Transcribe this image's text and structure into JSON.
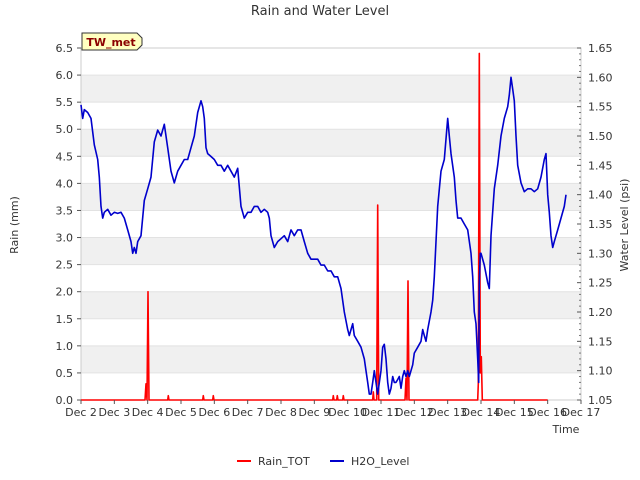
{
  "chart_data": {
    "type": "line",
    "title": "Rain and Water Level",
    "station_label": "TW_met",
    "xlabel": "Time",
    "ylabel_left": "Rain (mm)",
    "ylabel_right": "Water Level (psi)",
    "x_ticks": [
      "Dec 2",
      "Dec 3",
      "Dec 4",
      "Dec 5",
      "Dec 6",
      "Dec 7",
      "Dec 8",
      "Dec 9",
      "Dec 10",
      "Dec 11",
      "Dec 12",
      "Dec 13",
      "Dec 14",
      "Dec 15",
      "Dec 16",
      "Dec 17"
    ],
    "x_range_days": [
      0,
      15
    ],
    "y_left_ticks": [
      "0.0",
      "0.5",
      "1.0",
      "1.5",
      "2.0",
      "2.5",
      "3.0",
      "3.5",
      "4.0",
      "4.5",
      "5.0",
      "5.5",
      "6.0",
      "6.5"
    ],
    "y_left_range": [
      0,
      6.5
    ],
    "y_right_ticks": [
      "1.05",
      "1.10",
      "1.15",
      "1.20",
      "1.25",
      "1.30",
      "1.35",
      "1.40",
      "1.45",
      "1.50",
      "1.55",
      "1.60",
      "1.65"
    ],
    "y_right_range": [
      1.05,
      1.65
    ],
    "legend": {
      "placement": "bottom-center",
      "rain": "Rain_TOT",
      "water": "H2O_Level"
    },
    "colors": {
      "rain": "#ff0000",
      "water": "#0000cc",
      "band": "#f0f0f0",
      "station_bg": "#ffffc0",
      "station_text": "#8b0000"
    },
    "series": [
      {
        "name": "Rain_TOT",
        "axis": "left",
        "points": [
          [
            0,
            0
          ],
          [
            1.92,
            0
          ],
          [
            1.95,
            0.3
          ],
          [
            1.98,
            0
          ],
          [
            2.01,
            2.0
          ],
          [
            2.04,
            0
          ],
          [
            2.6,
            0
          ],
          [
            2.62,
            0.08
          ],
          [
            2.64,
            0
          ],
          [
            3.65,
            0
          ],
          [
            3.67,
            0.08
          ],
          [
            3.69,
            0
          ],
          [
            3.95,
            0
          ],
          [
            3.97,
            0.08
          ],
          [
            3.99,
            0
          ],
          [
            7.55,
            0
          ],
          [
            7.57,
            0.08
          ],
          [
            7.59,
            0
          ],
          [
            7.67,
            0
          ],
          [
            7.69,
            0.08
          ],
          [
            7.71,
            0
          ],
          [
            7.85,
            0
          ],
          [
            7.87,
            0.08
          ],
          [
            7.89,
            0
          ],
          [
            8.75,
            0
          ],
          [
            8.77,
            0.15
          ],
          [
            8.79,
            0
          ],
          [
            8.87,
            0
          ],
          [
            8.9,
            3.6
          ],
          [
            8.93,
            0
          ],
          [
            9.72,
            0
          ],
          [
            9.75,
            0.4
          ],
          [
            9.78,
            0
          ],
          [
            9.81,
            2.2
          ],
          [
            9.84,
            0
          ],
          [
            11.9,
            0
          ],
          [
            11.92,
            0.3
          ],
          [
            11.95,
            6.4
          ],
          [
            11.98,
            0.5
          ],
          [
            12.01,
            0.8
          ],
          [
            12.04,
            0
          ],
          [
            14.0,
            0
          ]
        ]
      },
      {
        "name": "H2O_Level",
        "axis": "right",
        "points": [
          [
            0.0,
            1.553
          ],
          [
            0.05,
            1.53
          ],
          [
            0.1,
            1.545
          ],
          [
            0.2,
            1.54
          ],
          [
            0.3,
            1.53
          ],
          [
            0.4,
            1.485
          ],
          [
            0.5,
            1.46
          ],
          [
            0.55,
            1.43
          ],
          [
            0.6,
            1.38
          ],
          [
            0.65,
            1.36
          ],
          [
            0.7,
            1.37
          ],
          [
            0.8,
            1.375
          ],
          [
            0.9,
            1.365
          ],
          [
            1.0,
            1.37
          ],
          [
            1.1,
            1.368
          ],
          [
            1.2,
            1.37
          ],
          [
            1.3,
            1.36
          ],
          [
            1.4,
            1.34
          ],
          [
            1.5,
            1.32
          ],
          [
            1.55,
            1.3
          ],
          [
            1.6,
            1.31
          ],
          [
            1.65,
            1.3
          ],
          [
            1.7,
            1.32
          ],
          [
            1.8,
            1.33
          ],
          [
            1.9,
            1.39
          ],
          [
            2.0,
            1.41
          ],
          [
            2.1,
            1.43
          ],
          [
            2.2,
            1.49
          ],
          [
            2.3,
            1.51
          ],
          [
            2.4,
            1.5
          ],
          [
            2.5,
            1.52
          ],
          [
            2.6,
            1.48
          ],
          [
            2.7,
            1.44
          ],
          [
            2.8,
            1.42
          ],
          [
            2.9,
            1.44
          ],
          [
            3.0,
            1.45
          ],
          [
            3.1,
            1.46
          ],
          [
            3.2,
            1.46
          ],
          [
            3.3,
            1.48
          ],
          [
            3.4,
            1.5
          ],
          [
            3.5,
            1.54
          ],
          [
            3.6,
            1.56
          ],
          [
            3.65,
            1.55
          ],
          [
            3.7,
            1.53
          ],
          [
            3.75,
            1.48
          ],
          [
            3.8,
            1.47
          ],
          [
            3.9,
            1.465
          ],
          [
            4.0,
            1.46
          ],
          [
            4.1,
            1.45
          ],
          [
            4.2,
            1.45
          ],
          [
            4.3,
            1.44
          ],
          [
            4.4,
            1.45
          ],
          [
            4.5,
            1.44
          ],
          [
            4.6,
            1.43
          ],
          [
            4.7,
            1.445
          ],
          [
            4.8,
            1.38
          ],
          [
            4.9,
            1.36
          ],
          [
            5.0,
            1.37
          ],
          [
            5.1,
            1.37
          ],
          [
            5.2,
            1.38
          ],
          [
            5.3,
            1.38
          ],
          [
            5.4,
            1.37
          ],
          [
            5.5,
            1.375
          ],
          [
            5.6,
            1.37
          ],
          [
            5.65,
            1.36
          ],
          [
            5.7,
            1.33
          ],
          [
            5.8,
            1.31
          ],
          [
            5.9,
            1.32
          ],
          [
            6.0,
            1.325
          ],
          [
            6.1,
            1.33
          ],
          [
            6.2,
            1.32
          ],
          [
            6.3,
            1.34
          ],
          [
            6.4,
            1.33
          ],
          [
            6.5,
            1.34
          ],
          [
            6.6,
            1.34
          ],
          [
            6.7,
            1.32
          ],
          [
            6.8,
            1.3
          ],
          [
            6.9,
            1.29
          ],
          [
            7.0,
            1.29
          ],
          [
            7.1,
            1.29
          ],
          [
            7.2,
            1.28
          ],
          [
            7.3,
            1.28
          ],
          [
            7.4,
            1.27
          ],
          [
            7.5,
            1.27
          ],
          [
            7.6,
            1.26
          ],
          [
            7.7,
            1.26
          ],
          [
            7.8,
            1.24
          ],
          [
            7.9,
            1.2
          ],
          [
            8.0,
            1.17
          ],
          [
            8.05,
            1.16
          ],
          [
            8.1,
            1.17
          ],
          [
            8.15,
            1.18
          ],
          [
            8.2,
            1.16
          ],
          [
            8.3,
            1.15
          ],
          [
            8.4,
            1.14
          ],
          [
            8.5,
            1.12
          ],
          [
            8.55,
            1.1
          ],
          [
            8.6,
            1.08
          ],
          [
            8.65,
            1.06
          ],
          [
            8.7,
            1.06
          ],
          [
            8.75,
            1.08
          ],
          [
            8.8,
            1.1
          ],
          [
            8.85,
            1.08
          ],
          [
            8.9,
            1.06
          ],
          [
            9.0,
            1.1
          ],
          [
            9.05,
            1.14
          ],
          [
            9.1,
            1.145
          ],
          [
            9.15,
            1.12
          ],
          [
            9.2,
            1.08
          ],
          [
            9.25,
            1.06
          ],
          [
            9.3,
            1.07
          ],
          [
            9.35,
            1.09
          ],
          [
            9.4,
            1.08
          ],
          [
            9.45,
            1.08
          ],
          [
            9.5,
            1.085
          ],
          [
            9.55,
            1.09
          ],
          [
            9.6,
            1.07
          ],
          [
            9.65,
            1.09
          ],
          [
            9.7,
            1.1
          ],
          [
            9.75,
            1.09
          ],
          [
            9.8,
            1.1
          ],
          [
            9.85,
            1.09
          ],
          [
            9.9,
            1.1
          ],
          [
            9.95,
            1.11
          ],
          [
            10.0,
            1.13
          ],
          [
            10.1,
            1.14
          ],
          [
            10.2,
            1.15
          ],
          [
            10.25,
            1.17
          ],
          [
            10.3,
            1.16
          ],
          [
            10.35,
            1.15
          ],
          [
            10.4,
            1.17
          ],
          [
            10.5,
            1.2
          ],
          [
            10.55,
            1.22
          ],
          [
            10.6,
            1.26
          ],
          [
            10.7,
            1.38
          ],
          [
            10.8,
            1.44
          ],
          [
            10.9,
            1.46
          ],
          [
            11.0,
            1.53
          ],
          [
            11.05,
            1.5
          ],
          [
            11.1,
            1.47
          ],
          [
            11.2,
            1.43
          ],
          [
            11.25,
            1.39
          ],
          [
            11.3,
            1.36
          ],
          [
            11.4,
            1.36
          ],
          [
            11.5,
            1.35
          ],
          [
            11.6,
            1.34
          ],
          [
            11.7,
            1.3
          ],
          [
            11.75,
            1.26
          ],
          [
            11.8,
            1.2
          ],
          [
            11.85,
            1.18
          ],
          [
            11.9,
            1.12
          ],
          [
            11.93,
            1.08
          ],
          [
            11.95,
            1.25
          ],
          [
            11.98,
            1.3
          ],
          [
            12.0,
            1.3
          ],
          [
            12.1,
            1.28
          ],
          [
            12.2,
            1.25
          ],
          [
            12.25,
            1.24
          ],
          [
            12.3,
            1.33
          ],
          [
            12.4,
            1.41
          ],
          [
            12.5,
            1.45
          ],
          [
            12.6,
            1.5
          ],
          [
            12.7,
            1.53
          ],
          [
            12.8,
            1.55
          ],
          [
            12.85,
            1.57
          ],
          [
            12.9,
            1.6
          ],
          [
            12.95,
            1.58
          ],
          [
            13.0,
            1.56
          ],
          [
            13.05,
            1.5
          ],
          [
            13.1,
            1.45
          ],
          [
            13.2,
            1.42
          ],
          [
            13.3,
            1.405
          ],
          [
            13.4,
            1.41
          ],
          [
            13.5,
            1.41
          ],
          [
            13.6,
            1.405
          ],
          [
            13.7,
            1.41
          ],
          [
            13.8,
            1.43
          ],
          [
            13.9,
            1.46
          ],
          [
            13.95,
            1.47
          ],
          [
            14.0,
            1.4
          ],
          [
            14.05,
            1.37
          ],
          [
            14.1,
            1.33
          ],
          [
            14.15,
            1.31
          ],
          [
            14.2,
            1.32
          ],
          [
            14.3,
            1.34
          ],
          [
            14.4,
            1.36
          ],
          [
            14.5,
            1.38
          ],
          [
            14.55,
            1.4
          ]
        ]
      }
    ]
  }
}
